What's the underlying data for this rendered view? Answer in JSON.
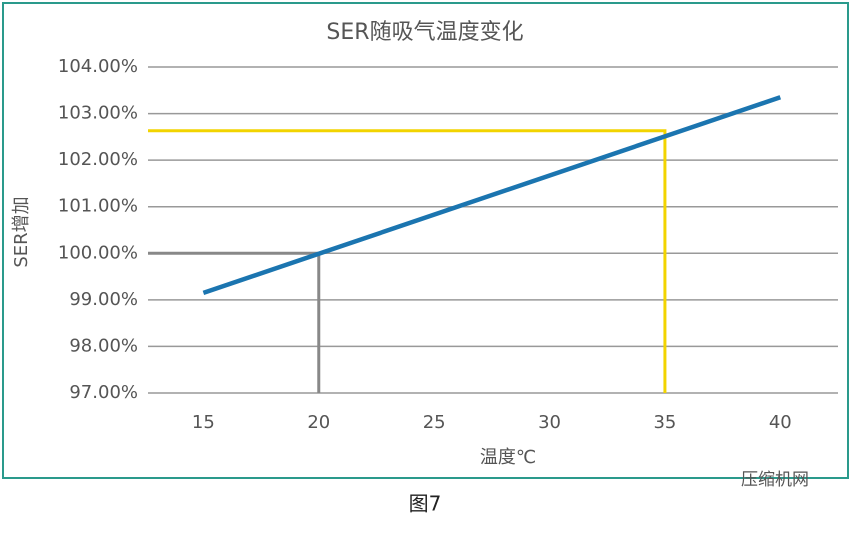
{
  "chart_data": {
    "type": "line",
    "title": "SER随吸气温度变化",
    "x_label": "温度℃",
    "y_label": "SER增加",
    "x": [
      15,
      40
    ],
    "series": [
      {
        "name": "SER",
        "color": "#1b75b0",
        "values": [
          99.15,
          103.35
        ]
      }
    ],
    "xlim": [
      12.6,
      42.5
    ],
    "ylim": [
      97,
      104
    ],
    "xticks": [
      15,
      20,
      25,
      30,
      35,
      40
    ],
    "yticks": [
      {
        "value": 97,
        "label": "97.00%"
      },
      {
        "value": 98,
        "label": "98.00%"
      },
      {
        "value": 99,
        "label": "99.00%"
      },
      {
        "value": 100,
        "label": "100.00%"
      },
      {
        "value": 101,
        "label": "101.00%"
      },
      {
        "value": 102,
        "label": "102.00%"
      },
      {
        "value": 103,
        "label": "103.00%"
      },
      {
        "value": 104,
        "label": "104.00%"
      }
    ],
    "grid": true,
    "reference_lines": [
      {
        "x": 20,
        "y": 100,
        "color": "#888888"
      },
      {
        "x": 35,
        "y": 102.63,
        "color": "#f2d400"
      }
    ]
  },
  "caption": "图7",
  "watermark": "压缩机网"
}
